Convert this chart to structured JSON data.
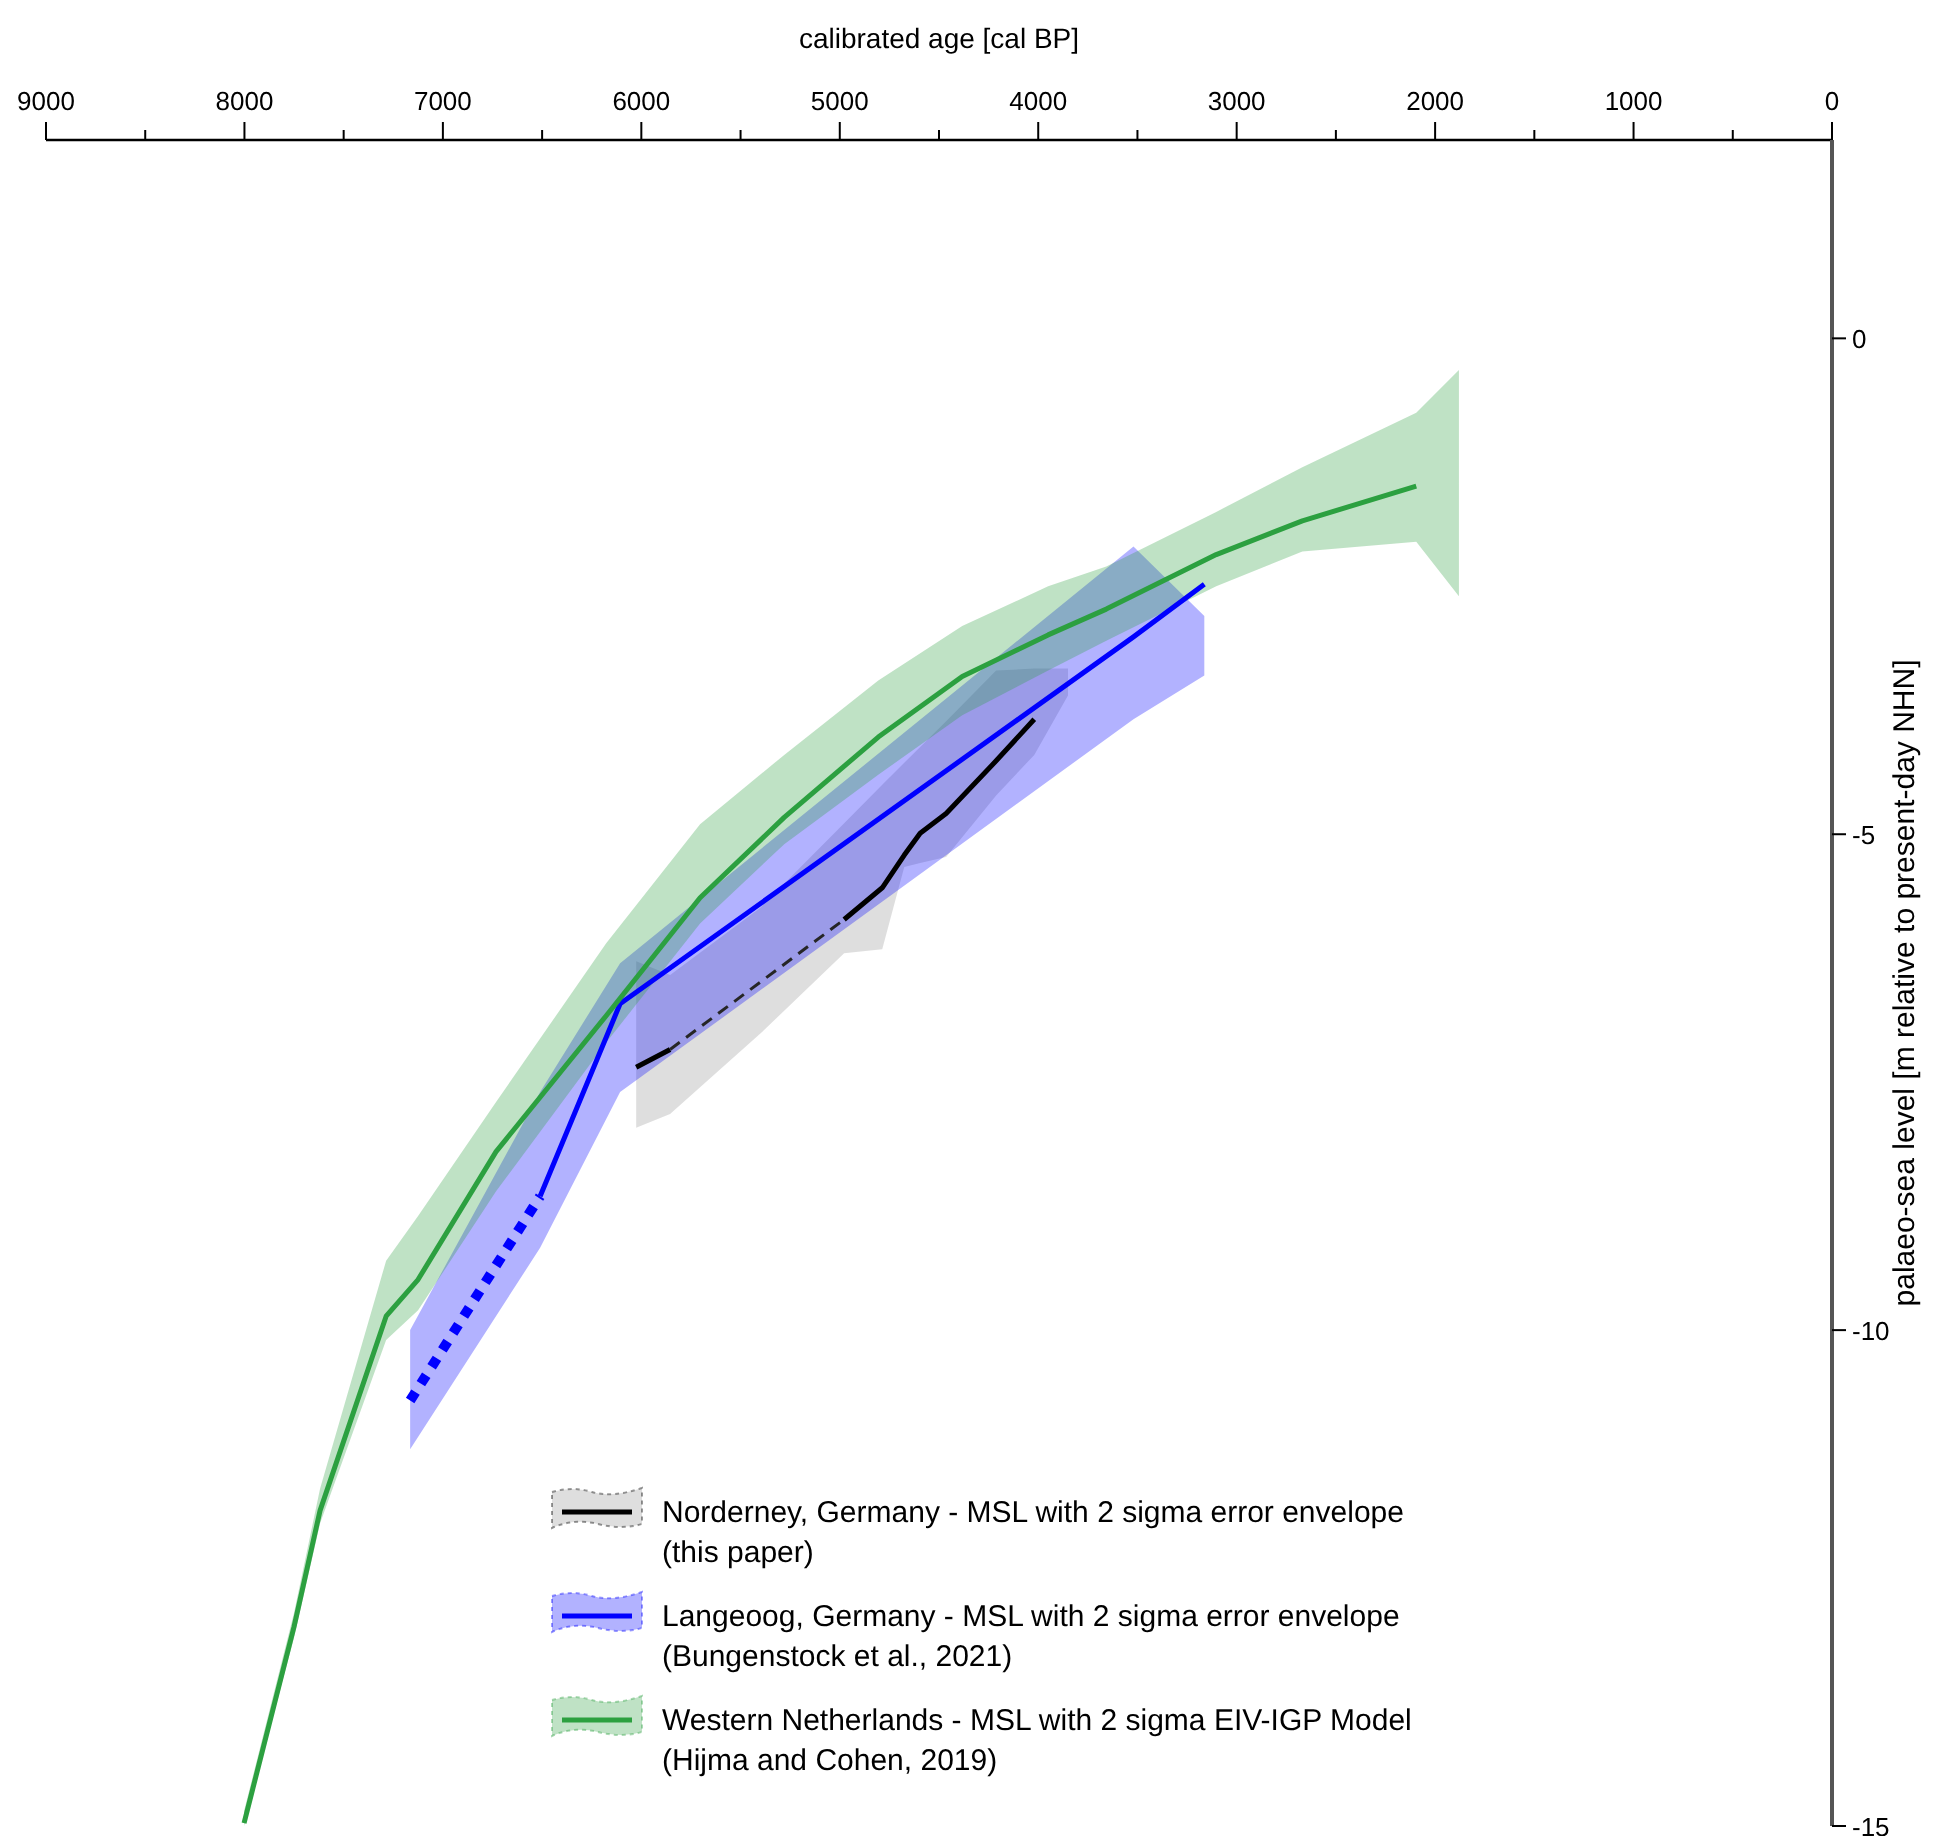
{
  "chart_data": {
    "type": "line",
    "xlabel": "calibrated age [cal BP]",
    "ylabel": "palaeo-sea level [m relative to present-day NHN]",
    "xlim": [
      9000,
      0
    ],
    "ylim": [
      -15,
      2
    ],
    "xticks": [
      9000,
      {
        "value": 8500,
        "label": null
      },
      8000,
      {
        "value": 7500,
        "label": null
      },
      7000,
      {
        "value": 6500,
        "label": null
      },
      6000,
      {
        "value": 5500,
        "label": null
      },
      5000,
      {
        "value": 4500,
        "label": null
      },
      4000,
      {
        "value": 3500,
        "label": null
      },
      3000,
      {
        "value": 2500,
        "label": null
      },
      2000,
      {
        "value": 1500,
        "label": null
      },
      1000,
      {
        "value": 500,
        "label": null
      },
      0
    ],
    "yticks": [
      0,
      -5,
      -10,
      -15
    ],
    "grid": false,
    "legend": "bottom right",
    "series": [
      {
        "name": "Norderney, Germany - MSL with 2 sigma error envelope\n(this paper)",
        "color": "#000000",
        "line_style": "solid",
        "x": [
          6026,
          5855,
          5400,
          4978,
          4786,
          4675,
          4595,
          4464,
          4212,
          4020,
          3850
        ],
        "values": [
          -7.35,
          -7.17,
          null,
          -5.86,
          -5.54,
          -5.21,
          -4.99,
          -4.79,
          -4.26,
          -3.84,
          null
        ],
        "upper": [
          -6.28,
          -6.42,
          -5.74,
          -4.89,
          -4.5,
          -4.28,
          -4.12,
          -3.86,
          -3.35,
          -3.33,
          -3.33
        ],
        "lower": [
          -7.96,
          -7.82,
          -7.01,
          -6.2,
          -6.16,
          -5.33,
          -5.29,
          -5.23,
          -4.61,
          -4.2,
          -3.6
        ]
      },
      {
        "name": "Langeoog, Germany - MSL with 2 sigma error envelope\n(Bungenstock et al., 2021)",
        "color": "#0000ff",
        "line_style": "solid",
        "x": [
          7165,
          6510,
          6107,
          3520,
          3163
        ],
        "values": [
          null,
          -8.65,
          -6.71,
          -3.01,
          -2.48
        ],
        "upper": [
          -10.0,
          -7.6,
          -6.3,
          -2.1,
          -2.8
        ],
        "lower": [
          -11.2,
          -9.17,
          -7.6,
          -3.84,
          -3.4
        ]
      },
      {
        "name": "Western Netherlands - MSL with 2 sigma EIV-IGP Model\n(Hijma and Cohen, 2019)",
        "color": "#2ca040",
        "line_style": "solid",
        "x": [
          8002,
          7750,
          7619,
          7286,
          7125,
          6732,
          6177,
          5704,
          5280,
          4806,
          4383,
          3950,
          3657,
          3103,
          2669,
          2095,
          1880
        ],
        "values": [
          -14.97,
          -12.99,
          -11.82,
          -9.86,
          -9.49,
          -8.2,
          -6.83,
          -5.64,
          -4.83,
          -4.02,
          -3.41,
          -2.99,
          -2.73,
          -2.18,
          -1.84,
          -1.49,
          null
        ],
        "upper": [
          -14.85,
          -12.85,
          -11.6,
          -9.3,
          -8.85,
          -7.7,
          -6.1,
          -4.9,
          -4.2,
          -3.45,
          -2.9,
          -2.5,
          -2.3,
          -1.75,
          -1.3,
          -0.75,
          -0.32
        ],
        "lower": [
          -15,
          -13.1,
          -11.95,
          -10.1,
          -9.8,
          -8.6,
          -7.1,
          -5.9,
          -5.1,
          -4.4,
          -3.8,
          -3.35,
          -3.05,
          -2.5,
          -2.15,
          -2.05,
          -2.6
        ]
      },
      {
        "color": "#262626",
        "line_style": "dashed",
        "x": [
          5855,
          4978
        ],
        "values": [
          -7.17,
          -5.86
        ]
      },
      {
        "color": "#0000ff",
        "line_style": "dotted",
        "x": [
          7165,
          6510
        ],
        "values": [
          -10.71,
          -8.65
        ]
      }
    ]
  }
}
